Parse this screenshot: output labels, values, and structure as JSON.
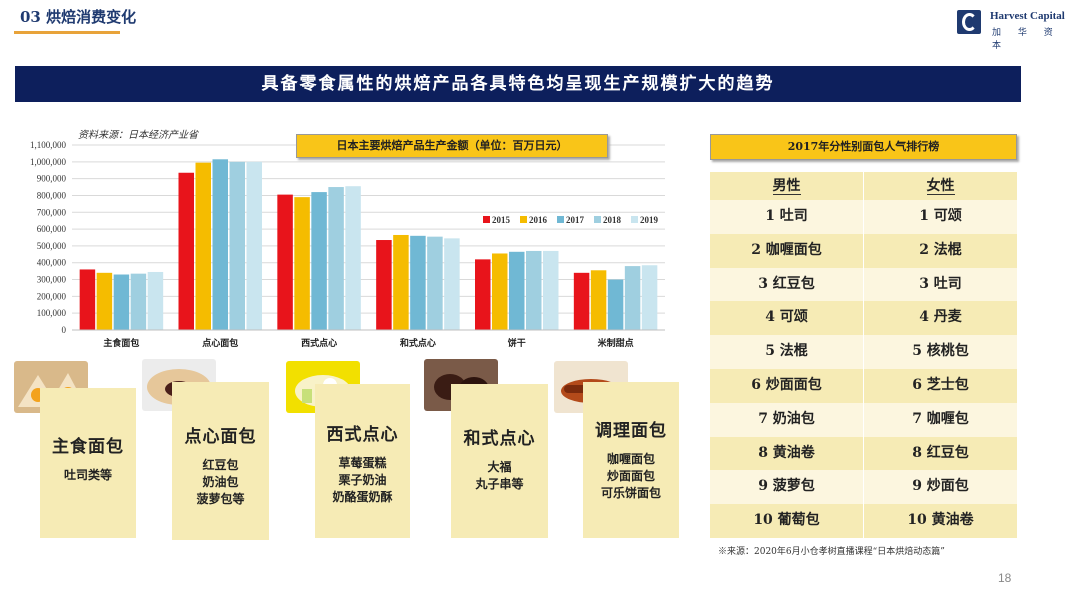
{
  "header": {
    "section_title": "03 烘焙消费变化",
    "brand_en": "Harvest Capital",
    "brand_cn": "加 华 资 本"
  },
  "banner": {
    "text": "具备零食属性的烘焙产品各具特色均呈现生产规模扩大的趋势"
  },
  "chart_source": "资料来源：日本经济产业省",
  "chart_data": {
    "type": "bar",
    "title": "日本主要烘焙产品生产金额（单位：百万日元）",
    "categories": [
      "主食面包",
      "点心面包",
      "西式点心",
      "和式点心",
      "饼干",
      "米制甜点"
    ],
    "series": [
      {
        "name": "2015",
        "color": "#e8141b",
        "values": [
          360000,
          935000,
          805000,
          535000,
          420000,
          340000
        ]
      },
      {
        "name": "2016",
        "color": "#f5bc00",
        "values": [
          340000,
          995000,
          790000,
          565000,
          455000,
          355000
        ]
      },
      {
        "name": "2017",
        "color": "#70b8d4",
        "values": [
          330000,
          1015000,
          820000,
          560000,
          465000,
          300000
        ]
      },
      {
        "name": "2018",
        "color": "#9fcfe0",
        "values": [
          335000,
          1000000,
          850000,
          555000,
          470000,
          380000
        ]
      },
      {
        "name": "2019",
        "color": "#c9e5ef",
        "values": [
          345000,
          1000000,
          855000,
          545000,
          470000,
          385000
        ]
      }
    ],
    "yticks": [
      "0",
      "100,000",
      "200,000",
      "300,000",
      "400,000",
      "500,000",
      "600,000",
      "700,000",
      "800,000",
      "900,000",
      "1,000,000",
      "1,100,000"
    ],
    "ylim": [
      0,
      1100000
    ],
    "legend": "right-middle",
    "grid": true
  },
  "categories": [
    {
      "name": "主食面包",
      "items": [
        "吐司类等"
      ]
    },
    {
      "name": "点心面包",
      "items": [
        "红豆包",
        "奶油包",
        "菠萝包等"
      ]
    },
    {
      "name": "西式点心",
      "items": [
        "草莓蛋糕",
        "栗子奶油",
        "奶酪蛋奶酥"
      ]
    },
    {
      "name": "和式点心",
      "items": [
        "大福",
        "丸子串等"
      ]
    },
    {
      "name": "调理面包",
      "items": [
        "咖喱面包",
        "炒面面包",
        "可乐饼面包"
      ]
    }
  ],
  "ranking": {
    "title": "2017年分性别面包人气排行榜",
    "headers": [
      "男性",
      "女性"
    ],
    "rows": [
      [
        "1 吐司",
        "1 可颂"
      ],
      [
        "2 咖喱面包",
        "2 法棍"
      ],
      [
        "3 红豆包",
        "3 吐司"
      ],
      [
        "4 可颂",
        "4 丹麦"
      ],
      [
        "5 法棍",
        "5 核桃包"
      ],
      [
        "6 炒面面包",
        "6 芝士包"
      ],
      [
        "7 奶油包",
        "7 咖喱包"
      ],
      [
        "8 黄油卷",
        "8 红豆包"
      ],
      [
        "9 菠萝包",
        "9 炒面包"
      ],
      [
        "10 葡萄包",
        "10 黄油卷"
      ]
    ]
  },
  "footer": {
    "source": "※来源：2020年6月小仓孝树直播课程“日本烘焙动态篇”",
    "page": "18"
  }
}
